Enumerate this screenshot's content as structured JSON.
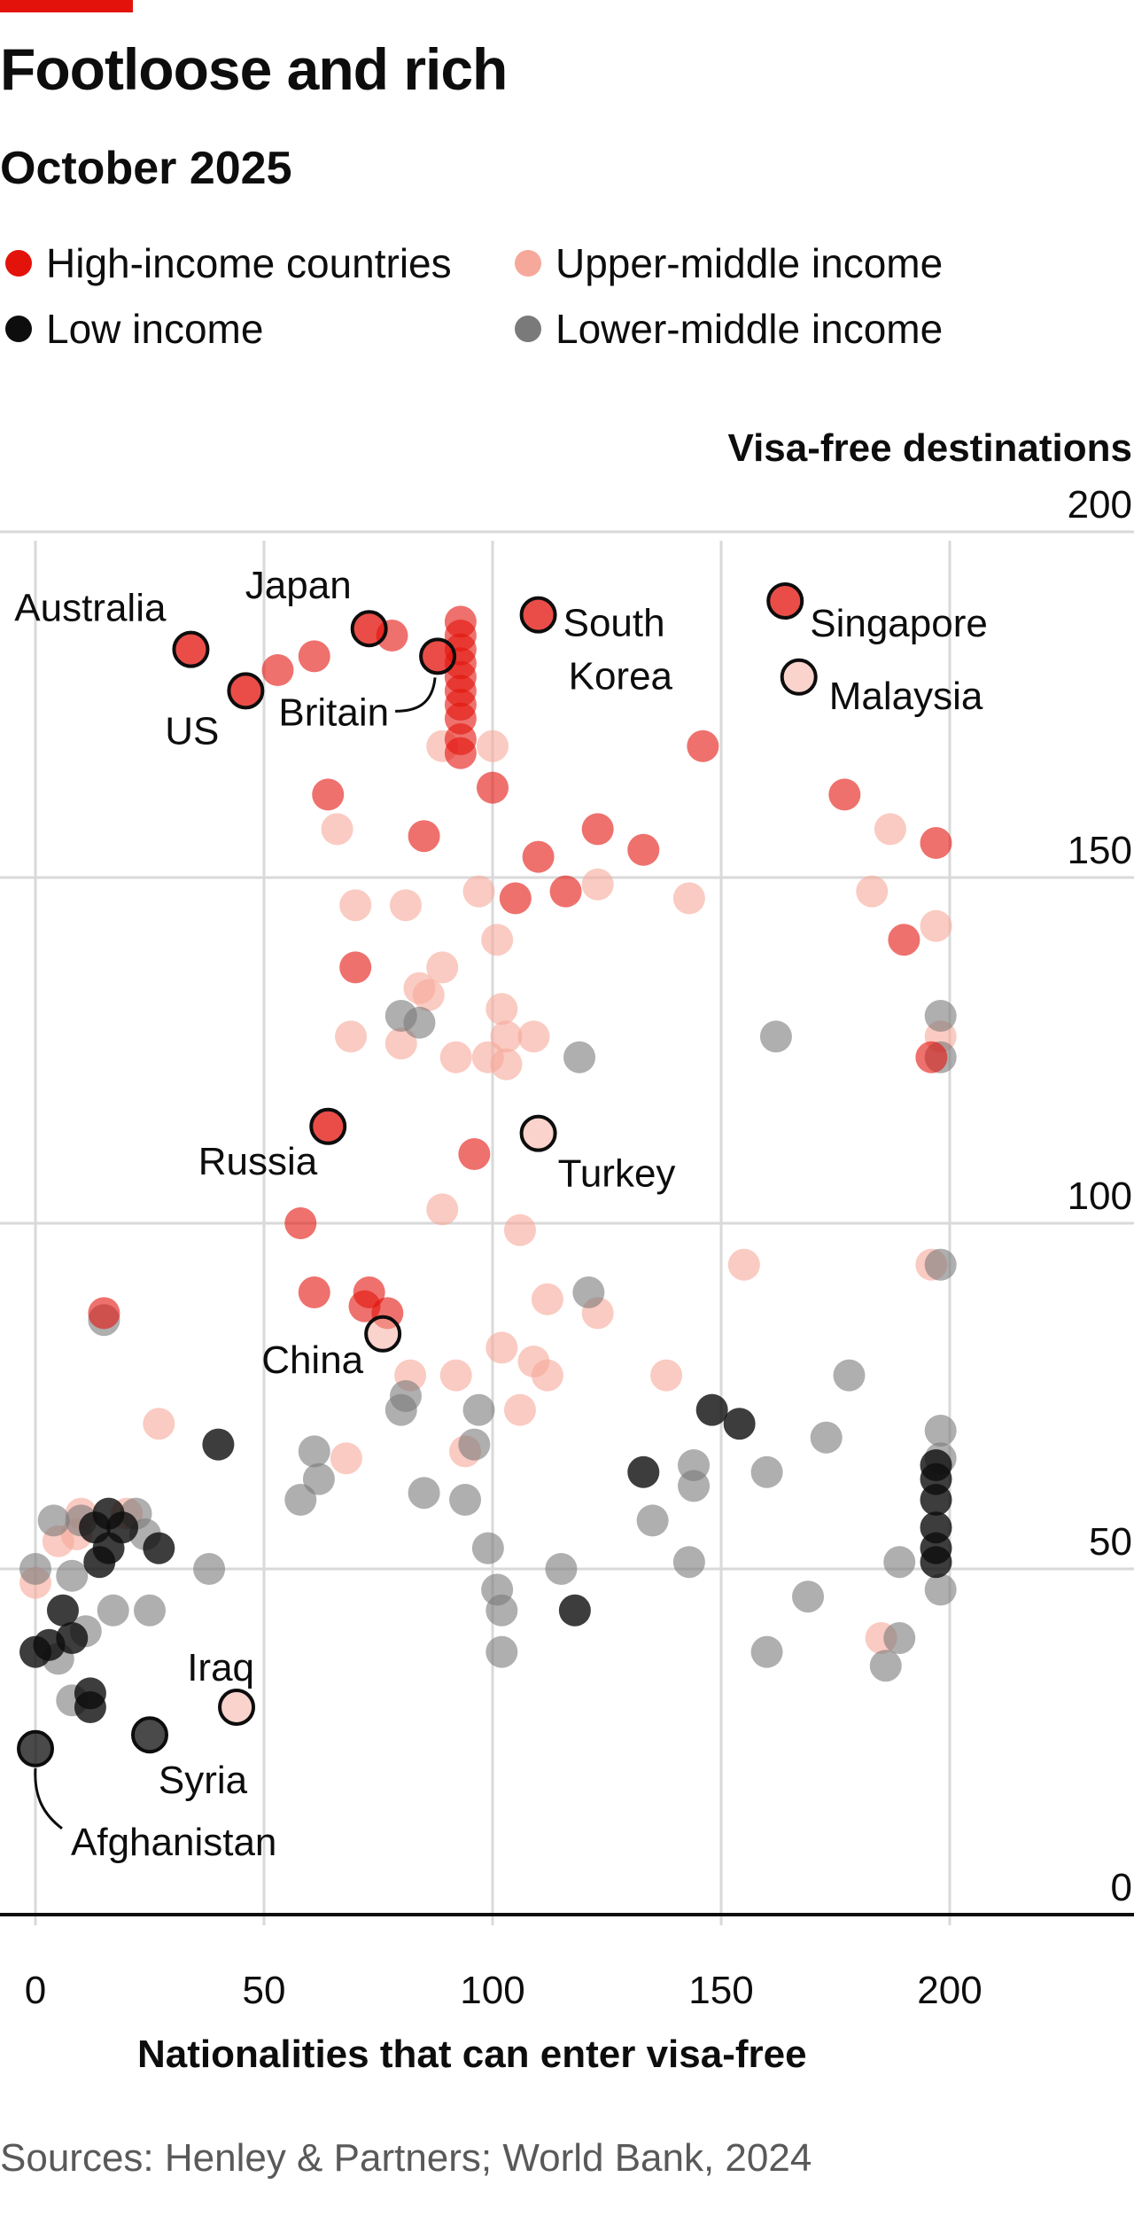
{
  "header": {
    "title": "Footloose and rich",
    "subtitle": "October 2025",
    "source": "Sources: Henley & Partners; World Bank, 2024"
  },
  "legend": [
    {
      "label": "High-income countries",
      "group": "high"
    },
    {
      "label": "Upper-middle income",
      "group": "upper"
    },
    {
      "label": "Low income",
      "group": "low"
    },
    {
      "label": "Lower-middle income",
      "group": "lower"
    }
  ],
  "colors": {
    "high": "#e3120b",
    "upper": "#f6a89a",
    "low": "#0d0d0d",
    "lower": "#7a7a7a",
    "gridline": "#d9d9d9",
    "axis": "#0d0d0d"
  },
  "chart_data": {
    "type": "scatter",
    "xlabel": "Nationalities that can enter visa-free",
    "ylabel": "Visa-free destinations",
    "xlim": [
      -8,
      240
    ],
    "ylim": [
      -5,
      205
    ],
    "xticks": [
      0,
      50,
      100,
      150,
      200
    ],
    "yticks": [
      0,
      50,
      100,
      150,
      200
    ],
    "grid": true,
    "legend_position": "top",
    "labels": [
      {
        "name": "Australia",
        "x": 34,
        "y": 183,
        "side": "upper-left"
      },
      {
        "name": "Japan",
        "x": 73,
        "y": 186,
        "side": "upper-left"
      },
      {
        "name": "US",
        "x": 46,
        "y": 177,
        "side": "below-left"
      },
      {
        "name": "Britain",
        "x": 88,
        "y": 182,
        "side": "leader"
      },
      {
        "name": "South Korea",
        "x": 110,
        "y": 188,
        "side": "right"
      },
      {
        "name": "Singapore",
        "x": 164,
        "y": 190,
        "side": "right"
      },
      {
        "name": "Malaysia",
        "x": 167,
        "y": 179,
        "side": "right"
      },
      {
        "name": "Russia",
        "x": 64,
        "y": 114,
        "side": "left"
      },
      {
        "name": "Turkey",
        "x": 110,
        "y": 113,
        "side": "right"
      },
      {
        "name": "China",
        "x": 76,
        "y": 84,
        "side": "left"
      },
      {
        "name": "Iraq",
        "x": 44,
        "y": 30,
        "side": "above-left"
      },
      {
        "name": "Syria",
        "x": 25,
        "y": 26,
        "side": "below"
      },
      {
        "name": "Afghanistan",
        "x": 0,
        "y": 24,
        "side": "leader"
      }
    ],
    "series": [
      {
        "name": "High-income countries",
        "group": "high",
        "points": [
          [
            34,
            183
          ],
          [
            46,
            177
          ],
          [
            53,
            180
          ],
          [
            61,
            182
          ],
          [
            73,
            186
          ],
          [
            78,
            185
          ],
          [
            88,
            182
          ],
          [
            93,
            187
          ],
          [
            93,
            185
          ],
          [
            93,
            183
          ],
          [
            93,
            181
          ],
          [
            93,
            179
          ],
          [
            93,
            177
          ],
          [
            93,
            175
          ],
          [
            93,
            173
          ],
          [
            93,
            170
          ],
          [
            93,
            168
          ],
          [
            100,
            163
          ],
          [
            110,
            188
          ],
          [
            146,
            169
          ],
          [
            164,
            190
          ],
          [
            177,
            162
          ],
          [
            197,
            155
          ],
          [
            64,
            162
          ],
          [
            85,
            156
          ],
          [
            110,
            153
          ],
          [
            123,
            157
          ],
          [
            133,
            154
          ],
          [
            116,
            148
          ],
          [
            105,
            147
          ],
          [
            190,
            141
          ],
          [
            196,
            124
          ],
          [
            70,
            137
          ],
          [
            64,
            114
          ],
          [
            96,
            110
          ],
          [
            58,
            100
          ],
          [
            61,
            90
          ],
          [
            73,
            90
          ],
          [
            72,
            88
          ],
          [
            77,
            87
          ],
          [
            15,
            87
          ]
        ]
      },
      {
        "name": "Upper-middle income",
        "group": "upper",
        "points": [
          [
            167,
            179
          ],
          [
            110,
            113
          ],
          [
            76,
            84
          ],
          [
            44,
            30
          ],
          [
            66,
            157
          ],
          [
            89,
            169
          ],
          [
            100,
            169
          ],
          [
            97,
            148
          ],
          [
            81,
            146
          ],
          [
            70,
            146
          ],
          [
            101,
            141
          ],
          [
            84,
            134
          ],
          [
            86,
            133
          ],
          [
            89,
            137
          ],
          [
            102,
            131
          ],
          [
            103,
            127
          ],
          [
            109,
            127
          ],
          [
            69,
            127
          ],
          [
            80,
            126
          ],
          [
            92,
            124
          ],
          [
            99,
            124
          ],
          [
            103,
            123
          ],
          [
            123,
            149
          ],
          [
            143,
            147
          ],
          [
            183,
            148
          ],
          [
            187,
            157
          ],
          [
            197,
            143
          ],
          [
            198,
            127
          ],
          [
            155,
            94
          ],
          [
            196,
            94
          ],
          [
            106,
            99
          ],
          [
            89,
            102
          ],
          [
            112,
            89
          ],
          [
            123,
            87
          ],
          [
            102,
            82
          ],
          [
            109,
            80
          ],
          [
            112,
            78
          ],
          [
            92,
            78
          ],
          [
            82,
            78
          ],
          [
            138,
            78
          ],
          [
            106,
            73
          ],
          [
            94,
            67
          ],
          [
            68,
            66
          ],
          [
            27,
            71
          ],
          [
            9,
            55
          ],
          [
            5,
            54
          ],
          [
            0,
            48
          ],
          [
            10,
            58
          ],
          [
            20,
            58
          ],
          [
            185,
            40
          ]
        ]
      },
      {
        "name": "Low income",
        "group": "low",
        "points": [
          [
            0,
            24
          ],
          [
            25,
            26
          ],
          [
            40,
            68
          ],
          [
            148,
            73
          ],
          [
            154,
            71
          ],
          [
            133,
            64
          ],
          [
            118,
            44
          ],
          [
            197,
            65
          ],
          [
            197,
            63
          ],
          [
            197,
            60
          ],
          [
            197,
            56
          ],
          [
            197,
            53
          ],
          [
            197,
            51
          ],
          [
            16,
            58
          ],
          [
            19,
            56
          ],
          [
            13,
            56
          ],
          [
            16,
            53
          ],
          [
            14,
            51
          ],
          [
            27,
            53
          ],
          [
            6,
            44
          ],
          [
            8,
            40
          ],
          [
            0,
            38
          ],
          [
            3,
            39
          ],
          [
            12,
            32
          ],
          [
            12,
            30
          ]
        ]
      },
      {
        "name": "Lower-middle income",
        "group": "lower",
        "points": [
          [
            15,
            86
          ],
          [
            80,
            130
          ],
          [
            84,
            129
          ],
          [
            119,
            124
          ],
          [
            162,
            127
          ],
          [
            198,
            130
          ],
          [
            198,
            124
          ],
          [
            121,
            90
          ],
          [
            198,
            94
          ],
          [
            178,
            78
          ],
          [
            80,
            73
          ],
          [
            81,
            75
          ],
          [
            97,
            73
          ],
          [
            96,
            68
          ],
          [
            61,
            67
          ],
          [
            62,
            63
          ],
          [
            58,
            60
          ],
          [
            85,
            61
          ],
          [
            94,
            60
          ],
          [
            99,
            53
          ],
          [
            115,
            50
          ],
          [
            101,
            47
          ],
          [
            102,
            44
          ],
          [
            102,
            38
          ],
          [
            135,
            57
          ],
          [
            144,
            62
          ],
          [
            144,
            65
          ],
          [
            160,
            64
          ],
          [
            173,
            69
          ],
          [
            143,
            51
          ],
          [
            198,
            70
          ],
          [
            198,
            66
          ],
          [
            189,
            51
          ],
          [
            198,
            47
          ],
          [
            169,
            46
          ],
          [
            189,
            40
          ],
          [
            186,
            36
          ],
          [
            160,
            38
          ],
          [
            4,
            57
          ],
          [
            10,
            57
          ],
          [
            22,
            58
          ],
          [
            24,
            55
          ],
          [
            38,
            50
          ],
          [
            0,
            50
          ],
          [
            8,
            49
          ],
          [
            17,
            44
          ],
          [
            25,
            44
          ],
          [
            8,
            31
          ],
          [
            5,
            37
          ],
          [
            11,
            41
          ]
        ]
      }
    ]
  }
}
